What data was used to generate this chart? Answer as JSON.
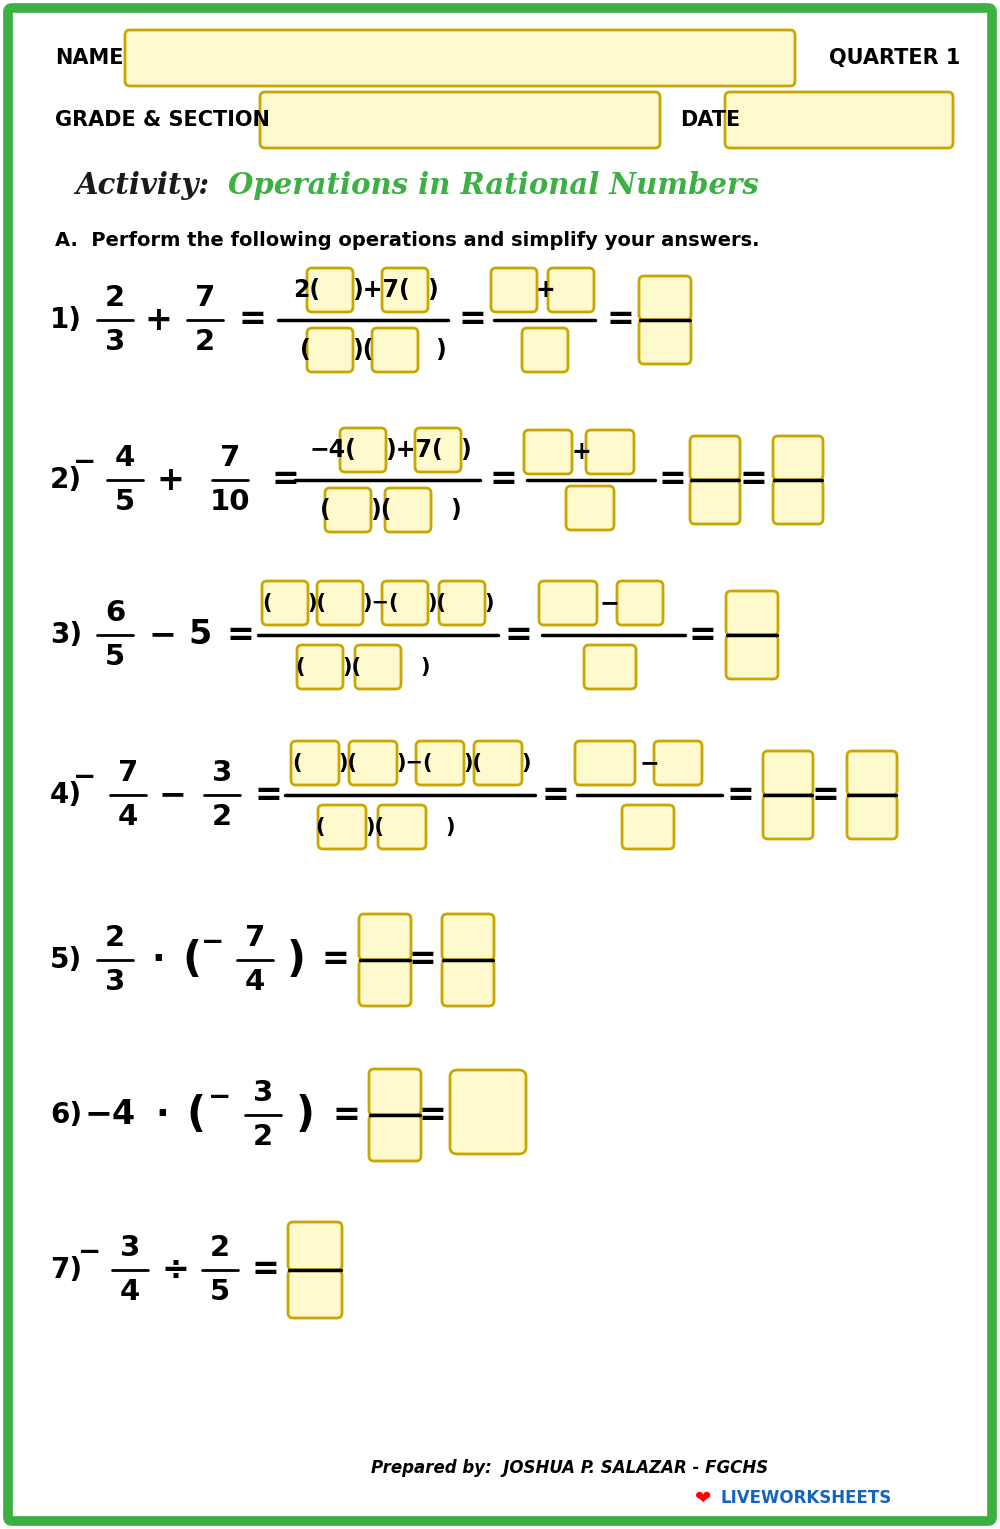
{
  "bg_color": "#ffffff",
  "border_color": "#3cb043",
  "box_fill": "#fffacd",
  "box_edge": "#c8a800",
  "header_name": "NAME",
  "header_quarter": "QUARTER 1",
  "header_grade": "GRADE & SECTION",
  "header_date": "DATE",
  "title_activity": "Activity: ",
  "title_main": "Operations in Rational Numbers",
  "title_activity_color": "#1a1a1a",
  "title_main_color": "#3cb043",
  "instruction": "A.  Perform the following operations and simplify your answers.",
  "footer": "Prepared by:  JOSHUA P. SALAZAR - FGCHS",
  "watermark": "LIVEWORKSHEETS"
}
